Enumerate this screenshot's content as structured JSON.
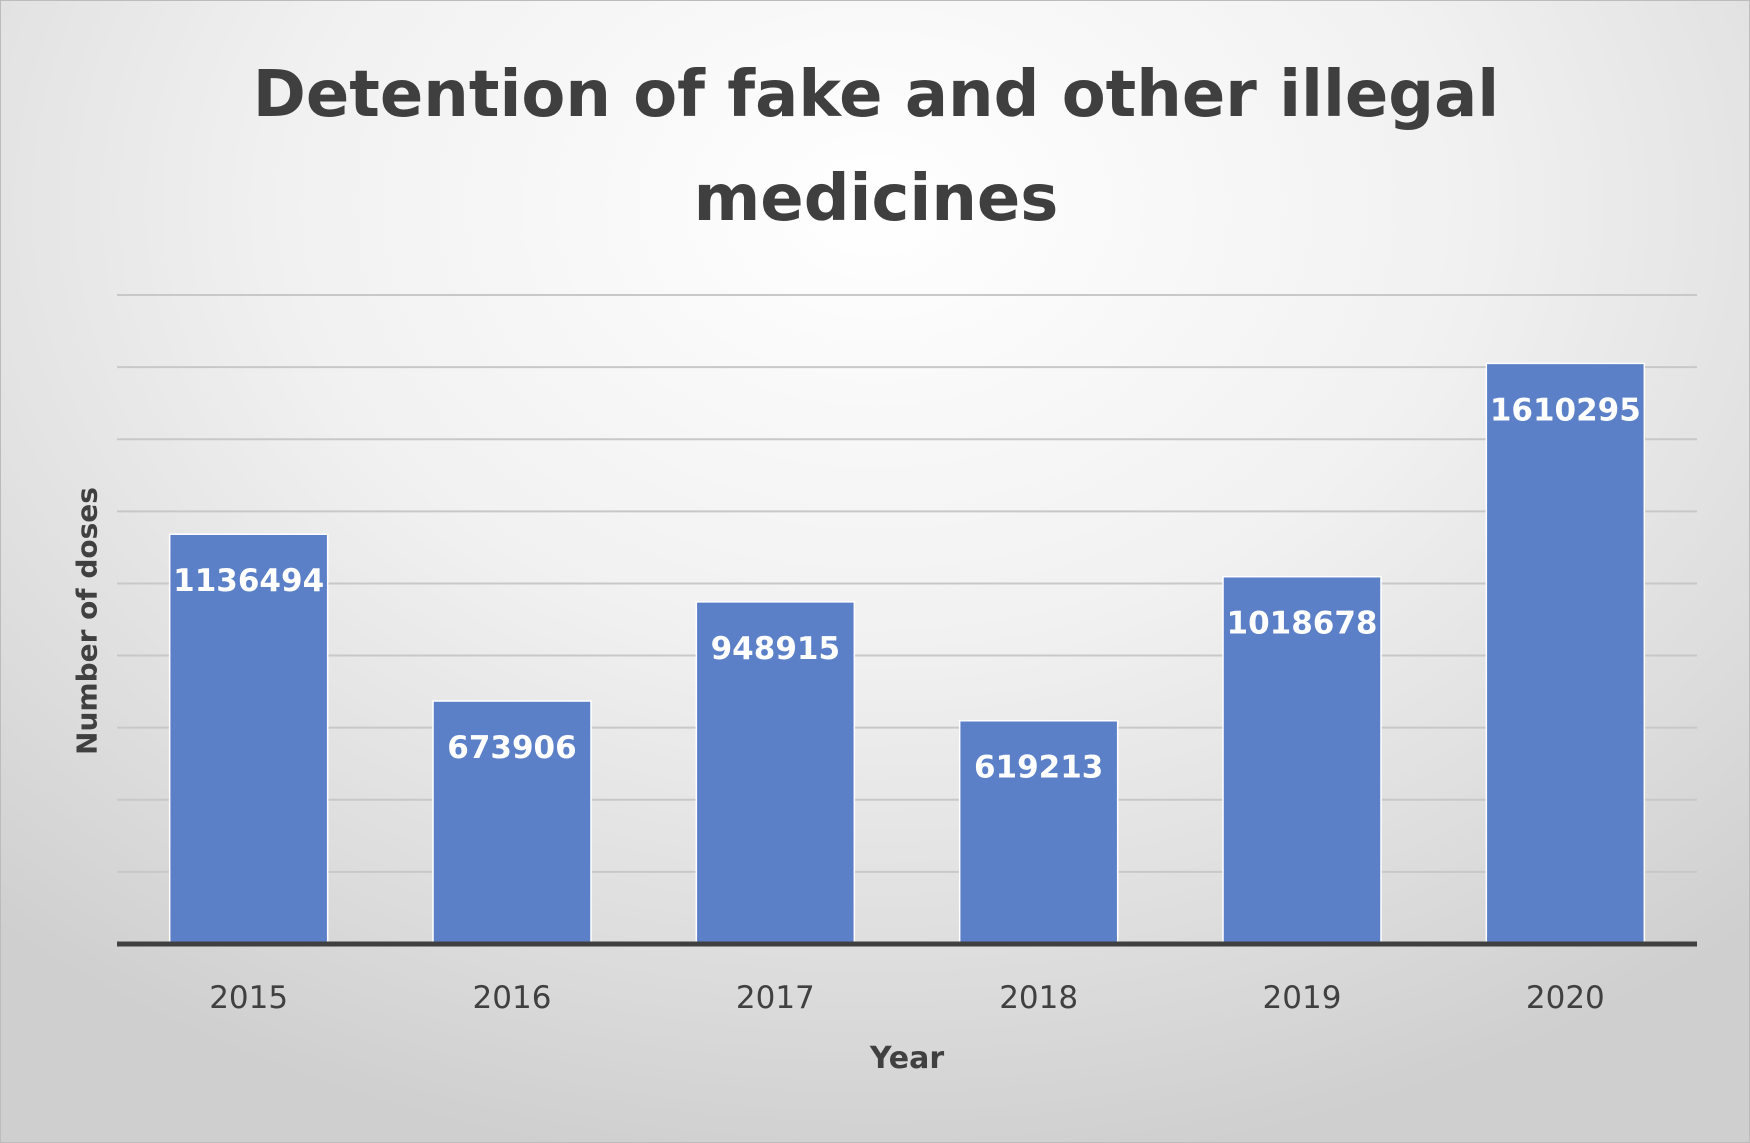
{
  "chart_data": {
    "type": "bar",
    "title": "Detention of fake and other illegal medicines",
    "xlabel": "Year",
    "ylabel": "Number of doses",
    "categories": [
      "2015",
      "2016",
      "2017",
      "2018",
      "2019",
      "2020"
    ],
    "values": [
      1136494,
      673906,
      948915,
      619213,
      1018678,
      1610295
    ],
    "data_labels": [
      "1136494",
      "673906",
      "948915",
      "619213",
      "1018678",
      "1610295"
    ],
    "ylim": [
      0,
      1800000
    ],
    "gridline_step": 200000,
    "y_tick_labels_shown": false,
    "grid": true,
    "legend": "none",
    "colors": {
      "bar": "#5b80c8",
      "bar_edge": "#ffffff",
      "gridline": "#c8c8c8",
      "axis": "#404040",
      "title": "#3f3f3f"
    }
  }
}
